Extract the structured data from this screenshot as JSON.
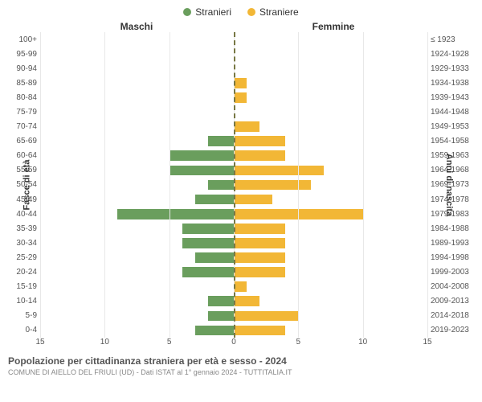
{
  "legend": {
    "male": {
      "label": "Stranieri",
      "color": "#6a9e5d"
    },
    "female": {
      "label": "Straniere",
      "color": "#f2b736"
    }
  },
  "headers": {
    "left": "Maschi",
    "right": "Femmine"
  },
  "axis_titles": {
    "left": "Fasce di età",
    "right": "Anni di nascita"
  },
  "grid_color": "#e8e8e8",
  "center_line_color": "#777744",
  "x_axis": {
    "min": -15,
    "max": 15,
    "ticks": [
      -15,
      -10,
      -5,
      0,
      5,
      10,
      15
    ],
    "labels": [
      "15",
      "10",
      "5",
      "0",
      "5",
      "10",
      "15"
    ]
  },
  "rows": [
    {
      "age": "100+",
      "birth": "≤ 1923",
      "m": 0,
      "f": 0
    },
    {
      "age": "95-99",
      "birth": "1924-1928",
      "m": 0,
      "f": 0
    },
    {
      "age": "90-94",
      "birth": "1929-1933",
      "m": 0,
      "f": 0
    },
    {
      "age": "85-89",
      "birth": "1934-1938",
      "m": 0,
      "f": 1
    },
    {
      "age": "80-84",
      "birth": "1939-1943",
      "m": 0,
      "f": 1
    },
    {
      "age": "75-79",
      "birth": "1944-1948",
      "m": 0,
      "f": 0
    },
    {
      "age": "70-74",
      "birth": "1949-1953",
      "m": 0,
      "f": 2
    },
    {
      "age": "65-69",
      "birth": "1954-1958",
      "m": 2,
      "f": 4
    },
    {
      "age": "60-64",
      "birth": "1959-1963",
      "m": 5,
      "f": 4
    },
    {
      "age": "55-59",
      "birth": "1964-1968",
      "m": 5,
      "f": 7
    },
    {
      "age": "50-54",
      "birth": "1969-1973",
      "m": 2,
      "f": 6
    },
    {
      "age": "45-49",
      "birth": "1974-1978",
      "m": 3,
      "f": 3
    },
    {
      "age": "40-44",
      "birth": "1979-1983",
      "m": 9,
      "f": 10
    },
    {
      "age": "35-39",
      "birth": "1984-1988",
      "m": 4,
      "f": 4
    },
    {
      "age": "30-34",
      "birth": "1989-1993",
      "m": 4,
      "f": 4
    },
    {
      "age": "25-29",
      "birth": "1994-1998",
      "m": 3,
      "f": 4
    },
    {
      "age": "20-24",
      "birth": "1999-2003",
      "m": 4,
      "f": 4
    },
    {
      "age": "15-19",
      "birth": "2004-2008",
      "m": 0,
      "f": 1
    },
    {
      "age": "10-14",
      "birth": "2009-2013",
      "m": 2,
      "f": 2
    },
    {
      "age": "5-9",
      "birth": "2014-2018",
      "m": 2,
      "f": 5
    },
    {
      "age": "0-4",
      "birth": "2019-2023",
      "m": 3,
      "f": 4
    }
  ],
  "footer": {
    "title": "Popolazione per cittadinanza straniera per età e sesso - 2024",
    "sub": "COMUNE DI AIELLO DEL FRIULI (UD) - Dati ISTAT al 1° gennaio 2024 - TUTTITALIA.IT"
  }
}
